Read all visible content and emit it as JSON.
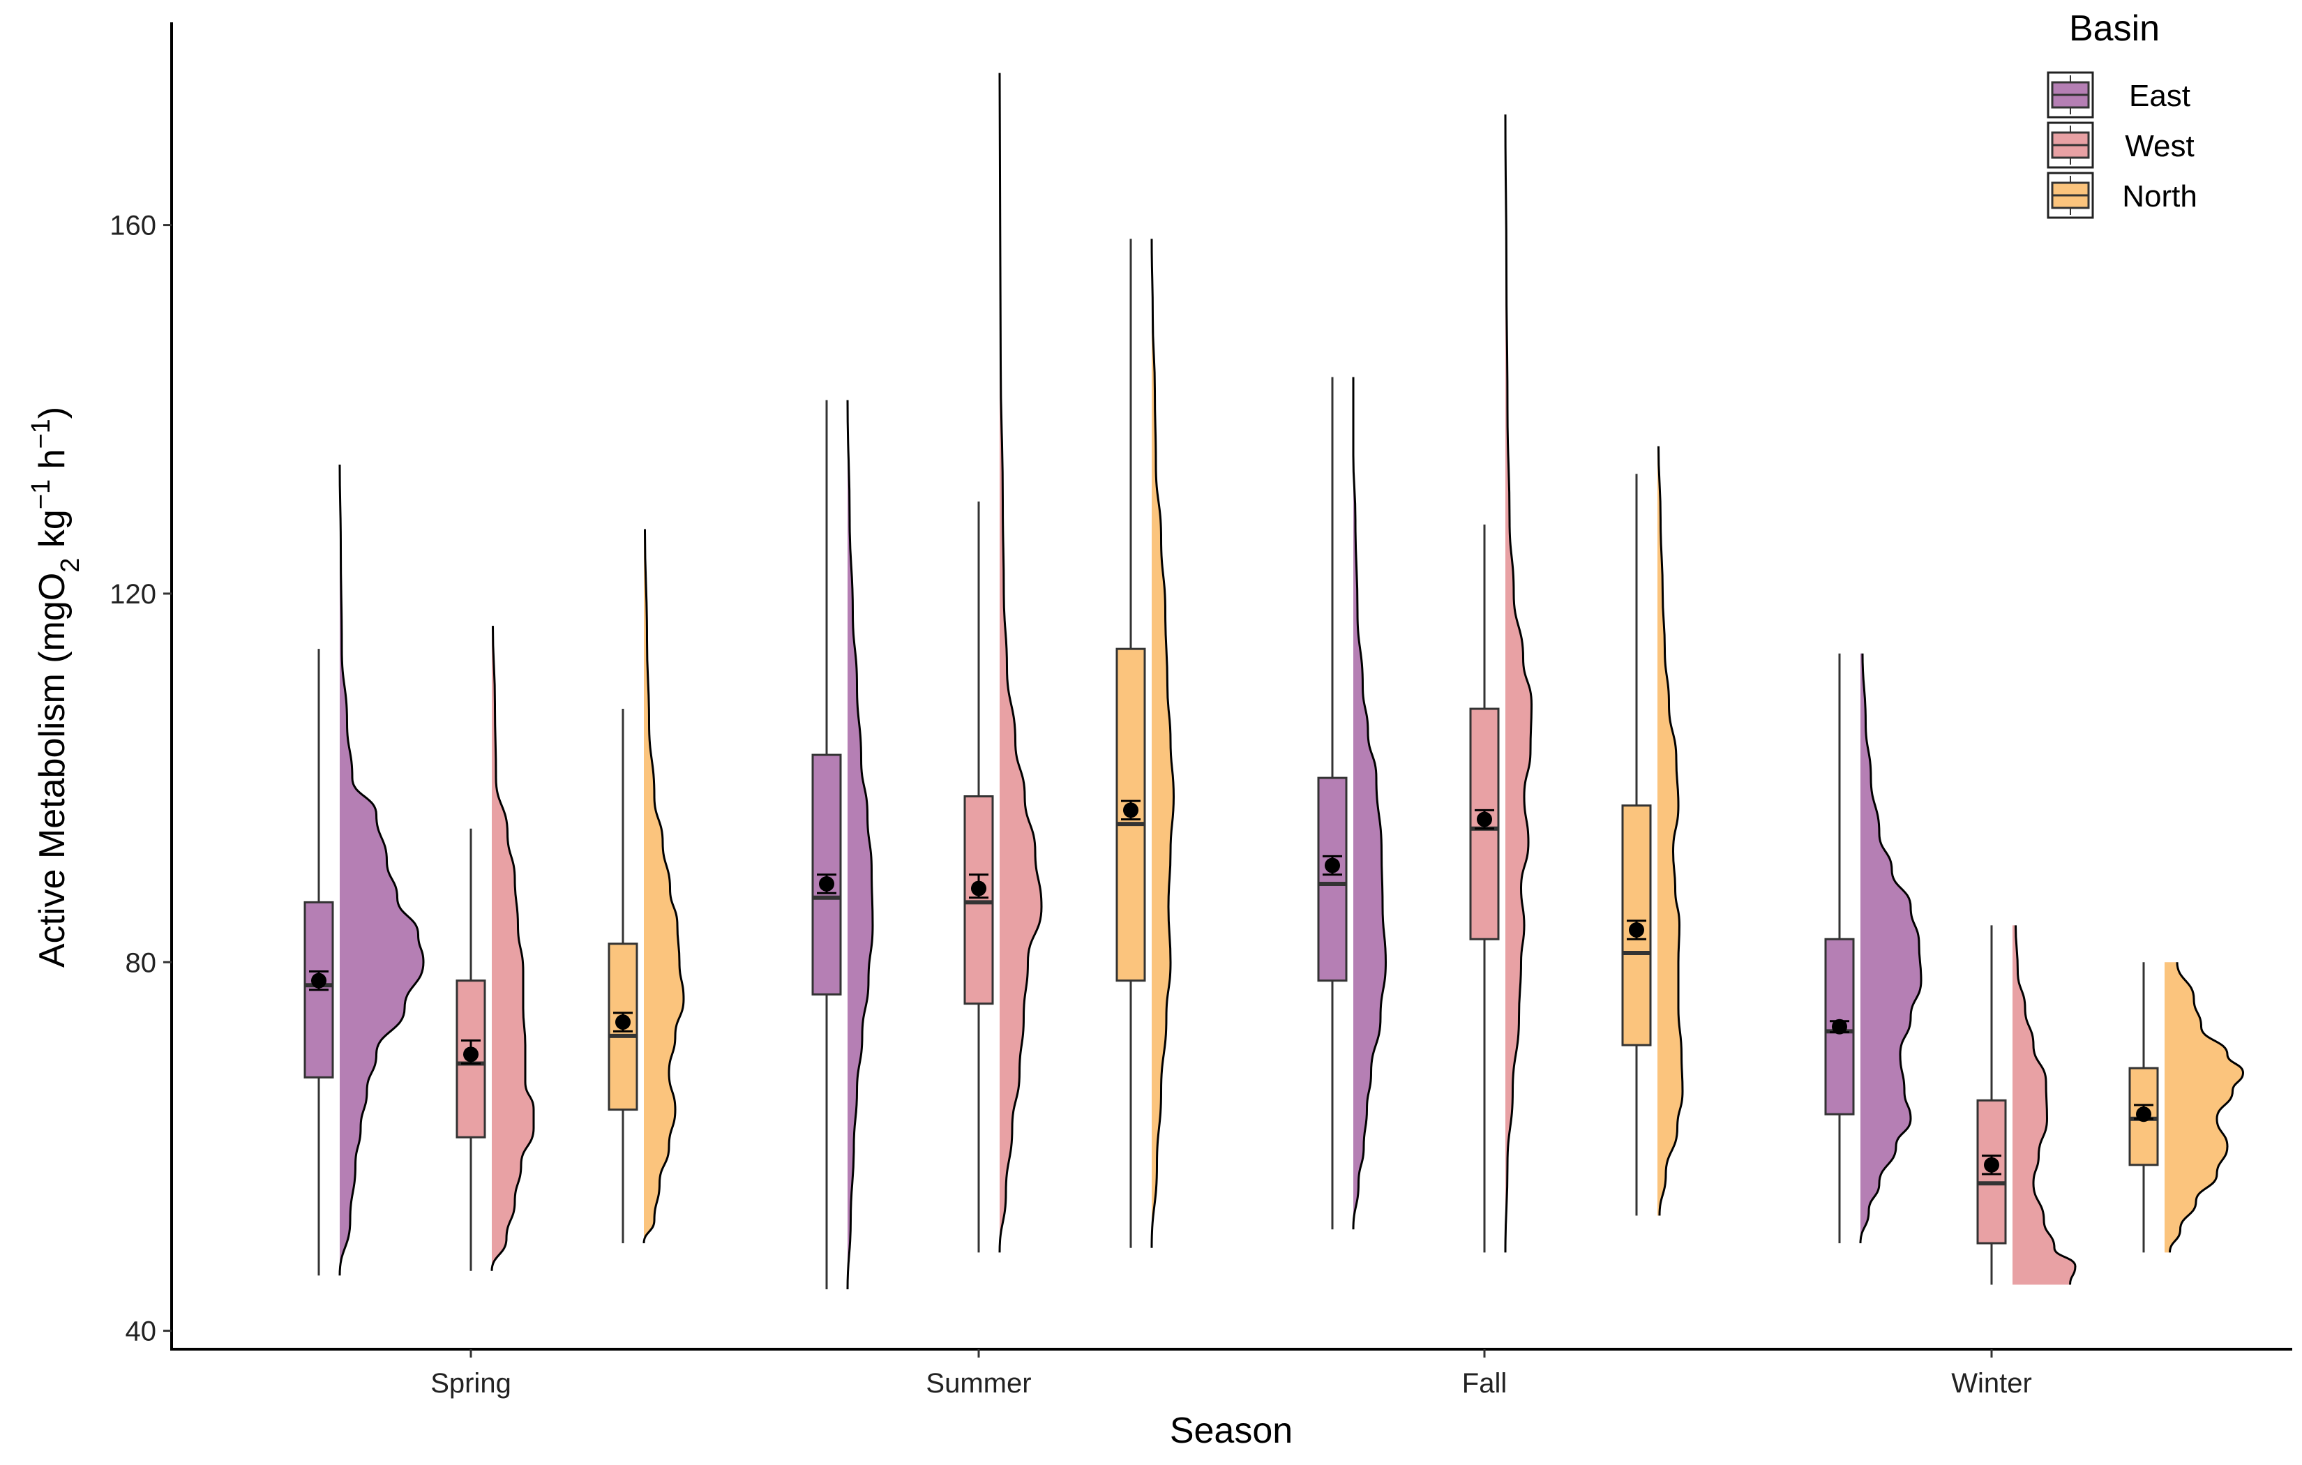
{
  "chart_data": {
    "type": "raincloud",
    "xlabel": "Season",
    "ylabel_parts": [
      "Active Metabolism (mgO",
      "2",
      " kg",
      "−1",
      " h",
      "−1",
      ")"
    ],
    "ylim": [
      38,
      182
    ],
    "yticks": [
      40,
      80,
      120,
      160
    ],
    "categories": [
      "Spring",
      "Summer",
      "Fall",
      "Winter"
    ],
    "legend": {
      "title": "Basin",
      "position": "top-right"
    },
    "series": [
      {
        "name": "East",
        "color": "#b57fb4",
        "boxes": [
          {
            "category": "Spring",
            "min": 46,
            "q1": 67.5,
            "median": 77.5,
            "q3": 86.5,
            "max": 114,
            "mean": 78,
            "ci": [
              77,
              79
            ],
            "density": [
              [
                46,
                0.0
              ],
              [
                52,
                0.1
              ],
              [
                58,
                0.15
              ],
              [
                62,
                0.2
              ],
              [
                66,
                0.26
              ],
              [
                70,
                0.35
              ],
              [
                75,
                0.62
              ],
              [
                80,
                0.8
              ],
              [
                83,
                0.75
              ],
              [
                87,
                0.55
              ],
              [
                91,
                0.45
              ],
              [
                96,
                0.35
              ],
              [
                100,
                0.12
              ],
              [
                106,
                0.07
              ],
              [
                114,
                0.02
              ],
              [
                125,
                0.01
              ],
              [
                134,
                0.0
              ]
            ]
          },
          {
            "category": "Summer",
            "min": 44.5,
            "q1": 76.5,
            "median": 87,
            "q3": 102.5,
            "max": 141,
            "mean": 88.5,
            "ci": [
              87.5,
              89.5
            ],
            "density": [
              [
                44.5,
                0.0
              ],
              [
                52,
                0.03
              ],
              [
                60,
                0.06
              ],
              [
                66,
                0.09
              ],
              [
                72,
                0.14
              ],
              [
                78,
                0.2
              ],
              [
                84,
                0.24
              ],
              [
                90,
                0.23
              ],
              [
                96,
                0.19
              ],
              [
                102,
                0.13
              ],
              [
                110,
                0.09
              ],
              [
                118,
                0.05
              ],
              [
                128,
                0.02
              ],
              [
                141,
                0.0
              ]
            ]
          },
          {
            "category": "Fall",
            "min": 51,
            "q1": 78,
            "median": 88.5,
            "q3": 100,
            "max": 143.5,
            "mean": 90.5,
            "ci": [
              89.5,
              91.5
            ],
            "density": [
              [
                51,
                0.0
              ],
              [
                56,
                0.05
              ],
              [
                60,
                0.1
              ],
              [
                64,
                0.13
              ],
              [
                68,
                0.17
              ],
              [
                74,
                0.26
              ],
              [
                80,
                0.31
              ],
              [
                86,
                0.28
              ],
              [
                92,
                0.27
              ],
              [
                100,
                0.22
              ],
              [
                105,
                0.14
              ],
              [
                110,
                0.09
              ],
              [
                118,
                0.04
              ],
              [
                128,
                0.02
              ],
              [
                135,
                0.0
              ],
              [
                143.5,
                0.0
              ]
            ]
          },
          {
            "category": "Winter",
            "min": 49.5,
            "q1": 63.5,
            "median": 72.5,
            "q3": 82.5,
            "max": 113.5,
            "mean": 73,
            "ci": [
              72.4,
              73.6
            ],
            "density": [
              [
                49.5,
                0.0
              ],
              [
                53,
                0.08
              ],
              [
                56,
                0.18
              ],
              [
                60,
                0.34
              ],
              [
                63,
                0.48
              ],
              [
                66,
                0.42
              ],
              [
                70,
                0.38
              ],
              [
                74,
                0.48
              ],
              [
                78,
                0.58
              ],
              [
                82,
                0.56
              ],
              [
                86,
                0.48
              ],
              [
                90,
                0.3
              ],
              [
                94,
                0.18
              ],
              [
                100,
                0.1
              ],
              [
                106,
                0.05
              ],
              [
                113.5,
                0.02
              ]
            ]
          }
        ]
      },
      {
        "name": "West",
        "color": "#e8a1a4",
        "boxes": [
          {
            "category": "Spring",
            "min": 46.5,
            "q1": 61,
            "median": 69,
            "q3": 78,
            "max": 94.5,
            "mean": 70,
            "ci": [
              69,
              71.5
            ],
            "density": [
              [
                46.5,
                0.0
              ],
              [
                50,
                0.14
              ],
              [
                54,
                0.22
              ],
              [
                58,
                0.28
              ],
              [
                62,
                0.4
              ],
              [
                64,
                0.4
              ],
              [
                67,
                0.32
              ],
              [
                71,
                0.32
              ],
              [
                75,
                0.3
              ],
              [
                79,
                0.3
              ],
              [
                84,
                0.25
              ],
              [
                89,
                0.22
              ],
              [
                94,
                0.15
              ],
              [
                100,
                0.04
              ],
              [
                108,
                0.03
              ],
              [
                116.5,
                0.01
              ]
            ]
          },
          {
            "category": "Summer",
            "min": 48.5,
            "q1": 75.5,
            "median": 86.5,
            "q3": 98,
            "max": 130,
            "mean": 88,
            "ci": [
              87,
              89.5
            ],
            "density": [
              [
                48.5,
                0.0
              ],
              [
                55,
                0.06
              ],
              [
                62,
                0.12
              ],
              [
                68,
                0.19
              ],
              [
                74,
                0.23
              ],
              [
                80,
                0.27
              ],
              [
                86,
                0.4
              ],
              [
                92,
                0.34
              ],
              [
                98,
                0.24
              ],
              [
                104,
                0.15
              ],
              [
                112,
                0.07
              ],
              [
                120,
                0.04
              ],
              [
                130,
                0.03
              ],
              [
                145,
                0.01
              ],
              [
                160,
                0.005
              ],
              [
                176.5,
                0.0
              ]
            ]
          },
          {
            "category": "Fall",
            "min": 48.5,
            "q1": 82.5,
            "median": 94.5,
            "q3": 107.5,
            "max": 127.5,
            "mean": 95.5,
            "ci": [
              94.5,
              96.5
            ],
            "density": [
              [
                48.5,
                0.0
              ],
              [
                58,
                0.02
              ],
              [
                66,
                0.07
              ],
              [
                74,
                0.13
              ],
              [
                80,
                0.15
              ],
              [
                84,
                0.18
              ],
              [
                88,
                0.15
              ],
              [
                93,
                0.22
              ],
              [
                98,
                0.18
              ],
              [
                103,
                0.24
              ],
              [
                108,
                0.25
              ],
              [
                113,
                0.17
              ],
              [
                120,
                0.08
              ],
              [
                128,
                0.04
              ],
              [
                140,
                0.02
              ],
              [
                155,
                0.01
              ],
              [
                172,
                0.0
              ]
            ]
          },
          {
            "category": "Winter",
            "min": 45,
            "q1": 49.5,
            "median": 56,
            "q3": 65,
            "max": 84,
            "mean": 58,
            "ci": [
              57,
              59
            ],
            "density": [
              [
                45,
                0.55
              ],
              [
                47,
                0.6
              ],
              [
                49,
                0.4
              ],
              [
                52,
                0.3
              ],
              [
                56,
                0.2
              ],
              [
                59,
                0.25
              ],
              [
                63,
                0.33
              ],
              [
                67,
                0.32
              ],
              [
                71,
                0.2
              ],
              [
                75,
                0.12
              ],
              [
                79,
                0.05
              ],
              [
                84,
                0.03
              ]
            ]
          }
        ]
      },
      {
        "name": "North",
        "color": "#fbc47d",
        "boxes": [
          {
            "category": "Spring",
            "min": 49.5,
            "q1": 64,
            "median": 72,
            "q3": 82,
            "max": 107.5,
            "mean": 73.5,
            "ci": [
              72.5,
              74.5
            ],
            "density": [
              [
                49.5,
                0.0
              ],
              [
                52,
                0.1
              ],
              [
                56,
                0.15
              ],
              [
                60,
                0.24
              ],
              [
                64,
                0.3
              ],
              [
                68,
                0.24
              ],
              [
                72,
                0.3
              ],
              [
                76,
                0.38
              ],
              [
                80,
                0.34
              ],
              [
                84,
                0.32
              ],
              [
                88,
                0.25
              ],
              [
                93,
                0.18
              ],
              [
                98,
                0.1
              ],
              [
                106,
                0.05
              ],
              [
                115,
                0.03
              ],
              [
                127,
                0.01
              ]
            ]
          },
          {
            "category": "Summer",
            "min": 49,
            "q1": 78,
            "median": 95,
            "q3": 114,
            "max": 158.5,
            "mean": 96.5,
            "ci": [
              95.5,
              97.5
            ],
            "density": [
              [
                49,
                0.0
              ],
              [
                58,
                0.05
              ],
              [
                66,
                0.09
              ],
              [
                74,
                0.14
              ],
              [
                80,
                0.18
              ],
              [
                86,
                0.16
              ],
              [
                92,
                0.18
              ],
              [
                98,
                0.21
              ],
              [
                104,
                0.18
              ],
              [
                110,
                0.15
              ],
              [
                118,
                0.13
              ],
              [
                126,
                0.09
              ],
              [
                134,
                0.04
              ],
              [
                142,
                0.03
              ],
              [
                150,
                0.01
              ],
              [
                158.5,
                0.0
              ]
            ]
          },
          {
            "category": "Fall",
            "min": 52.5,
            "q1": 71,
            "median": 81,
            "q3": 97,
            "max": 133,
            "mean": 83.5,
            "ci": [
              82.5,
              84.5
            ],
            "density": [
              [
                52.5,
                0.02
              ],
              [
                57,
                0.08
              ],
              [
                62,
                0.19
              ],
              [
                66,
                0.24
              ],
              [
                70,
                0.23
              ],
              [
                75,
                0.2
              ],
              [
                80,
                0.2
              ],
              [
                84,
                0.21
              ],
              [
                88,
                0.17
              ],
              [
                92,
                0.15
              ],
              [
                97,
                0.2
              ],
              [
                102,
                0.18
              ],
              [
                108,
                0.11
              ],
              [
                114,
                0.07
              ],
              [
                120,
                0.05
              ],
              [
                128,
                0.03
              ],
              [
                136,
                0.01
              ]
            ]
          },
          {
            "category": "Winter",
            "min": 48.5,
            "q1": 58,
            "median": 63,
            "q3": 68.5,
            "max": 80,
            "mean": 63.5,
            "ci": [
              63,
              64.5
            ],
            "density": [
              [
                48.5,
                0.05
              ],
              [
                51,
                0.15
              ],
              [
                54,
                0.3
              ],
              [
                57,
                0.5
              ],
              [
                60,
                0.6
              ],
              [
                63,
                0.5
              ],
              [
                66,
                0.65
              ],
              [
                68,
                0.75
              ],
              [
                70,
                0.6
              ],
              [
                73,
                0.35
              ],
              [
                76,
                0.28
              ],
              [
                80,
                0.12
              ]
            ]
          }
        ]
      }
    ]
  }
}
